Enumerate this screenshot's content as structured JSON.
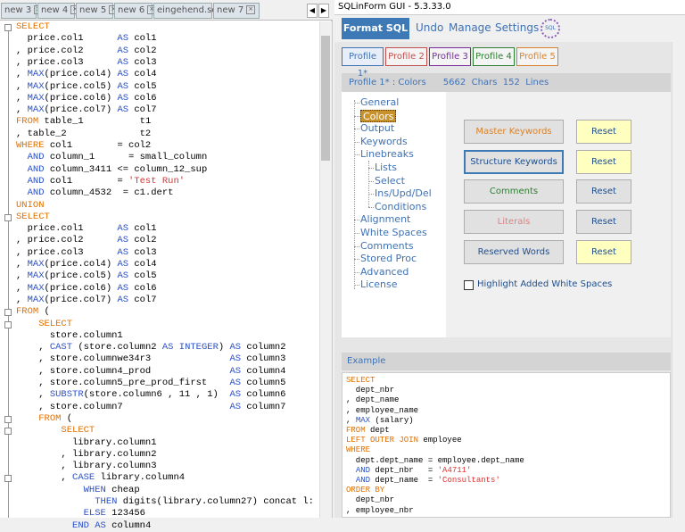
{
  "editor": {
    "tabs": [
      "new 3",
      "new 4",
      "new 5",
      "new 6",
      "eingehend.sql",
      "new 7"
    ],
    "lines": [
      [
        {
          "text": "SELECT",
          "style": "kw"
        }
      ],
      [
        "  price.col1      ",
        {
          "text": "AS",
          "style": "bl"
        },
        " col1"
      ],
      [
        ", price.col2      ",
        {
          "text": "AS",
          "style": "bl"
        },
        " col2"
      ],
      [
        ", price.col3      ",
        {
          "text": "AS",
          "style": "bl"
        },
        " col3"
      ],
      [
        ", ",
        {
          "text": "MAX",
          "style": "bl"
        },
        "(price.col4) ",
        {
          "text": "AS",
          "style": "bl"
        },
        " col4"
      ],
      [
        ", ",
        {
          "text": "MAX",
          "style": "bl"
        },
        "(price.col5) ",
        {
          "text": "AS",
          "style": "bl"
        },
        " col5"
      ],
      [
        ", ",
        {
          "text": "MAX",
          "style": "bl"
        },
        "(price.col6) ",
        {
          "text": "AS",
          "style": "bl"
        },
        " col6"
      ],
      [
        ", ",
        {
          "text": "MAX",
          "style": "bl"
        },
        "(price.col7) ",
        {
          "text": "AS",
          "style": "bl"
        },
        " col7"
      ],
      [
        {
          "text": "FROM",
          "style": "kw"
        },
        " table_1          t1"
      ],
      [
        ", table_2             t2"
      ],
      [
        {
          "text": "WHERE",
          "style": "kw"
        },
        " col1        = col2"
      ],
      [
        "  ",
        {
          "text": "AND",
          "style": "bl"
        },
        " column_1      = small_column"
      ],
      [
        "  ",
        {
          "text": "AND",
          "style": "bl"
        },
        " column_3411 <= column_12_sup"
      ],
      [
        "  ",
        {
          "text": "AND",
          "style": "bl"
        },
        " col1        = ",
        {
          "text": "'Test Run'",
          "style": "str"
        }
      ],
      [
        "  ",
        {
          "text": "AND",
          "style": "bl"
        },
        " column_4532  = c1.dert"
      ],
      [
        {
          "text": "UNION",
          "style": "kw"
        }
      ],
      [
        {
          "text": "SELECT",
          "style": "kw"
        }
      ],
      [
        "  price.col1      ",
        {
          "text": "AS",
          "style": "bl"
        },
        " col1"
      ],
      [
        ", price.col2      ",
        {
          "text": "AS",
          "style": "bl"
        },
        " col2"
      ],
      [
        ", price.col3      ",
        {
          "text": "AS",
          "style": "bl"
        },
        " col3"
      ],
      [
        ", ",
        {
          "text": "MAX",
          "style": "bl"
        },
        "(price.col4) ",
        {
          "text": "AS",
          "style": "bl"
        },
        " col4"
      ],
      [
        ", ",
        {
          "text": "MAX",
          "style": "bl"
        },
        "(price.col5) ",
        {
          "text": "AS",
          "style": "bl"
        },
        " col5"
      ],
      [
        ", ",
        {
          "text": "MAX",
          "style": "bl"
        },
        "(price.col6) ",
        {
          "text": "AS",
          "style": "bl"
        },
        " col6"
      ],
      [
        ", ",
        {
          "text": "MAX",
          "style": "bl"
        },
        "(price.col7) ",
        {
          "text": "AS",
          "style": "bl"
        },
        " col7"
      ],
      [
        {
          "text": "FROM",
          "style": "kw"
        },
        " ("
      ],
      [
        "    ",
        {
          "text": "SELECT",
          "style": "kw"
        }
      ],
      [
        "      store.column1"
      ],
      [
        "    , ",
        {
          "text": "CAST",
          "style": "bl"
        },
        " (store.column2 ",
        {
          "text": "AS INTEGER",
          "style": "bl"
        },
        ") ",
        {
          "text": "AS",
          "style": "bl"
        },
        " column2"
      ],
      [
        "    , store.columnwe34r3              ",
        {
          "text": "AS",
          "style": "bl"
        },
        " column3"
      ],
      [
        "    , store.column4_prod              ",
        {
          "text": "AS",
          "style": "bl"
        },
        " column4"
      ],
      [
        "    , store.column5_pre_prod_first    ",
        {
          "text": "AS",
          "style": "bl"
        },
        " column5"
      ],
      [
        "    , ",
        {
          "text": "SUBSTR",
          "style": "bl"
        },
        "(store.column6 , 11 , 1)  ",
        {
          "text": "AS",
          "style": "bl"
        },
        " column6"
      ],
      [
        "    , store.column7                   ",
        {
          "text": "AS",
          "style": "bl"
        },
        " column7"
      ],
      [
        "    ",
        {
          "text": "FROM",
          "style": "kw"
        },
        " ("
      ],
      [
        "        ",
        {
          "text": "SELECT",
          "style": "kw"
        }
      ],
      [
        "          library.column1"
      ],
      [
        "        , library.column2"
      ],
      [
        "        , library.column3"
      ],
      [
        "        , ",
        {
          "text": "CASE",
          "style": "bl"
        },
        " library.column4"
      ],
      [
        "            ",
        {
          "text": "WHEN",
          "style": "bl"
        },
        " cheap"
      ],
      [
        "              ",
        {
          "text": "THEN",
          "style": "bl"
        },
        " digits(library.column27) concat l:"
      ],
      [
        "            ",
        {
          "text": "ELSE",
          "style": "bl"
        },
        " 123456"
      ],
      [
        "          ",
        {
          "text": "END",
          "style": "bl"
        },
        " ",
        {
          "text": "AS",
          "style": "bl"
        },
        " column4"
      ]
    ]
  },
  "app": {
    "title": "SQLinForm GUI - 5.3.33.0",
    "toolbar": {
      "format": "Format SQL",
      "undo": "Undo",
      "manage": "Manage",
      "settings": "Settings",
      "logo": "SQL"
    },
    "profiles": [
      {
        "text": "Profile 1*",
        "color": "#3f72b5"
      },
      {
        "text": "Profile 2",
        "color": "#c0504d"
      },
      {
        "text": "Profile 3",
        "color": "#7b2a9e"
      },
      {
        "text": "Profile 4",
        "color": "#2e7d32"
      },
      {
        "text": "Profile 5",
        "color": "#d9822b"
      }
    ],
    "status": {
      "profile": "Profile 1* :",
      "section": "Colors",
      "chars": 5662,
      "chars_label": "Chars",
      "lines": 152,
      "lines_label": "Lines"
    },
    "nav": [
      {
        "text": "General",
        "level": 0
      },
      {
        "text": "Colors",
        "level": 0,
        "selected": true
      },
      {
        "text": "Output",
        "level": 0
      },
      {
        "text": "Keywords",
        "level": 0
      },
      {
        "text": "Linebreaks",
        "level": 0
      },
      {
        "text": "Lists",
        "level": 1
      },
      {
        "text": "Select",
        "level": 1
      },
      {
        "text": "Ins/Upd/Del",
        "level": 1
      },
      {
        "text": "Conditions",
        "level": 1
      },
      {
        "text": "Alignment",
        "level": 0
      },
      {
        "text": "White Spaces",
        "level": 0
      },
      {
        "text": "Comments",
        "level": 0
      },
      {
        "text": "Stored Proc",
        "level": 0
      },
      {
        "text": "Advanced",
        "level": 0
      },
      {
        "text": "License",
        "level": 0
      }
    ],
    "color_buttons": [
      {
        "label": "Master Keywords",
        "color": "#d9822b",
        "reset": "Reset",
        "reset_bg": "#ffffc0"
      },
      {
        "label": "Structure Keywords",
        "color": "#1f4e8c",
        "reset": "Reset",
        "reset_bg": "#ffffc0"
      },
      {
        "label": "Comments",
        "color": "#2e7d32",
        "reset": "Reset",
        "reset_bg": "#e1e1e1"
      },
      {
        "label": "Literals",
        "color": "#e08080",
        "reset": "Reset",
        "reset_bg": "#e1e1e1"
      },
      {
        "label": "Reserved Words",
        "color": "#1f4e8c",
        "reset": "Reset",
        "reset_bg": "#ffffc0"
      }
    ],
    "checkbox": "Highlight Added White Spaces",
    "example": {
      "title": "Example",
      "lines": [
        [
          {
            "text": "SELECT",
            "style": "kw"
          }
        ],
        [
          "  dept_nbr"
        ],
        [
          ", dept_name"
        ],
        [
          ", employee_name"
        ],
        [
          ", ",
          {
            "text": "MAX",
            "style": "bl"
          },
          " (salary)"
        ],
        [
          {
            "text": "FROM",
            "style": "kw"
          },
          " dept"
        ],
        [
          {
            "text": "LEFT OUTER JOIN",
            "style": "kw"
          },
          " employee"
        ],
        [
          {
            "text": "WHERE",
            "style": "kw"
          }
        ],
        [
          "  dept.dept_name = employee.dept_name"
        ],
        [
          "  ",
          {
            "text": "AND",
            "style": "bl"
          },
          " dept_nbr   = ",
          {
            "text": "'A4711'",
            "style": "str"
          }
        ],
        [
          "  ",
          {
            "text": "AND",
            "style": "bl"
          },
          " dept_name  = ",
          {
            "text": "'Consultants'",
            "style": "str"
          }
        ],
        [
          {
            "text": "ORDER BY",
            "style": "kw"
          }
        ],
        [
          "  dept_nbr"
        ],
        [
          ", employee_nbr"
        ]
      ]
    }
  }
}
